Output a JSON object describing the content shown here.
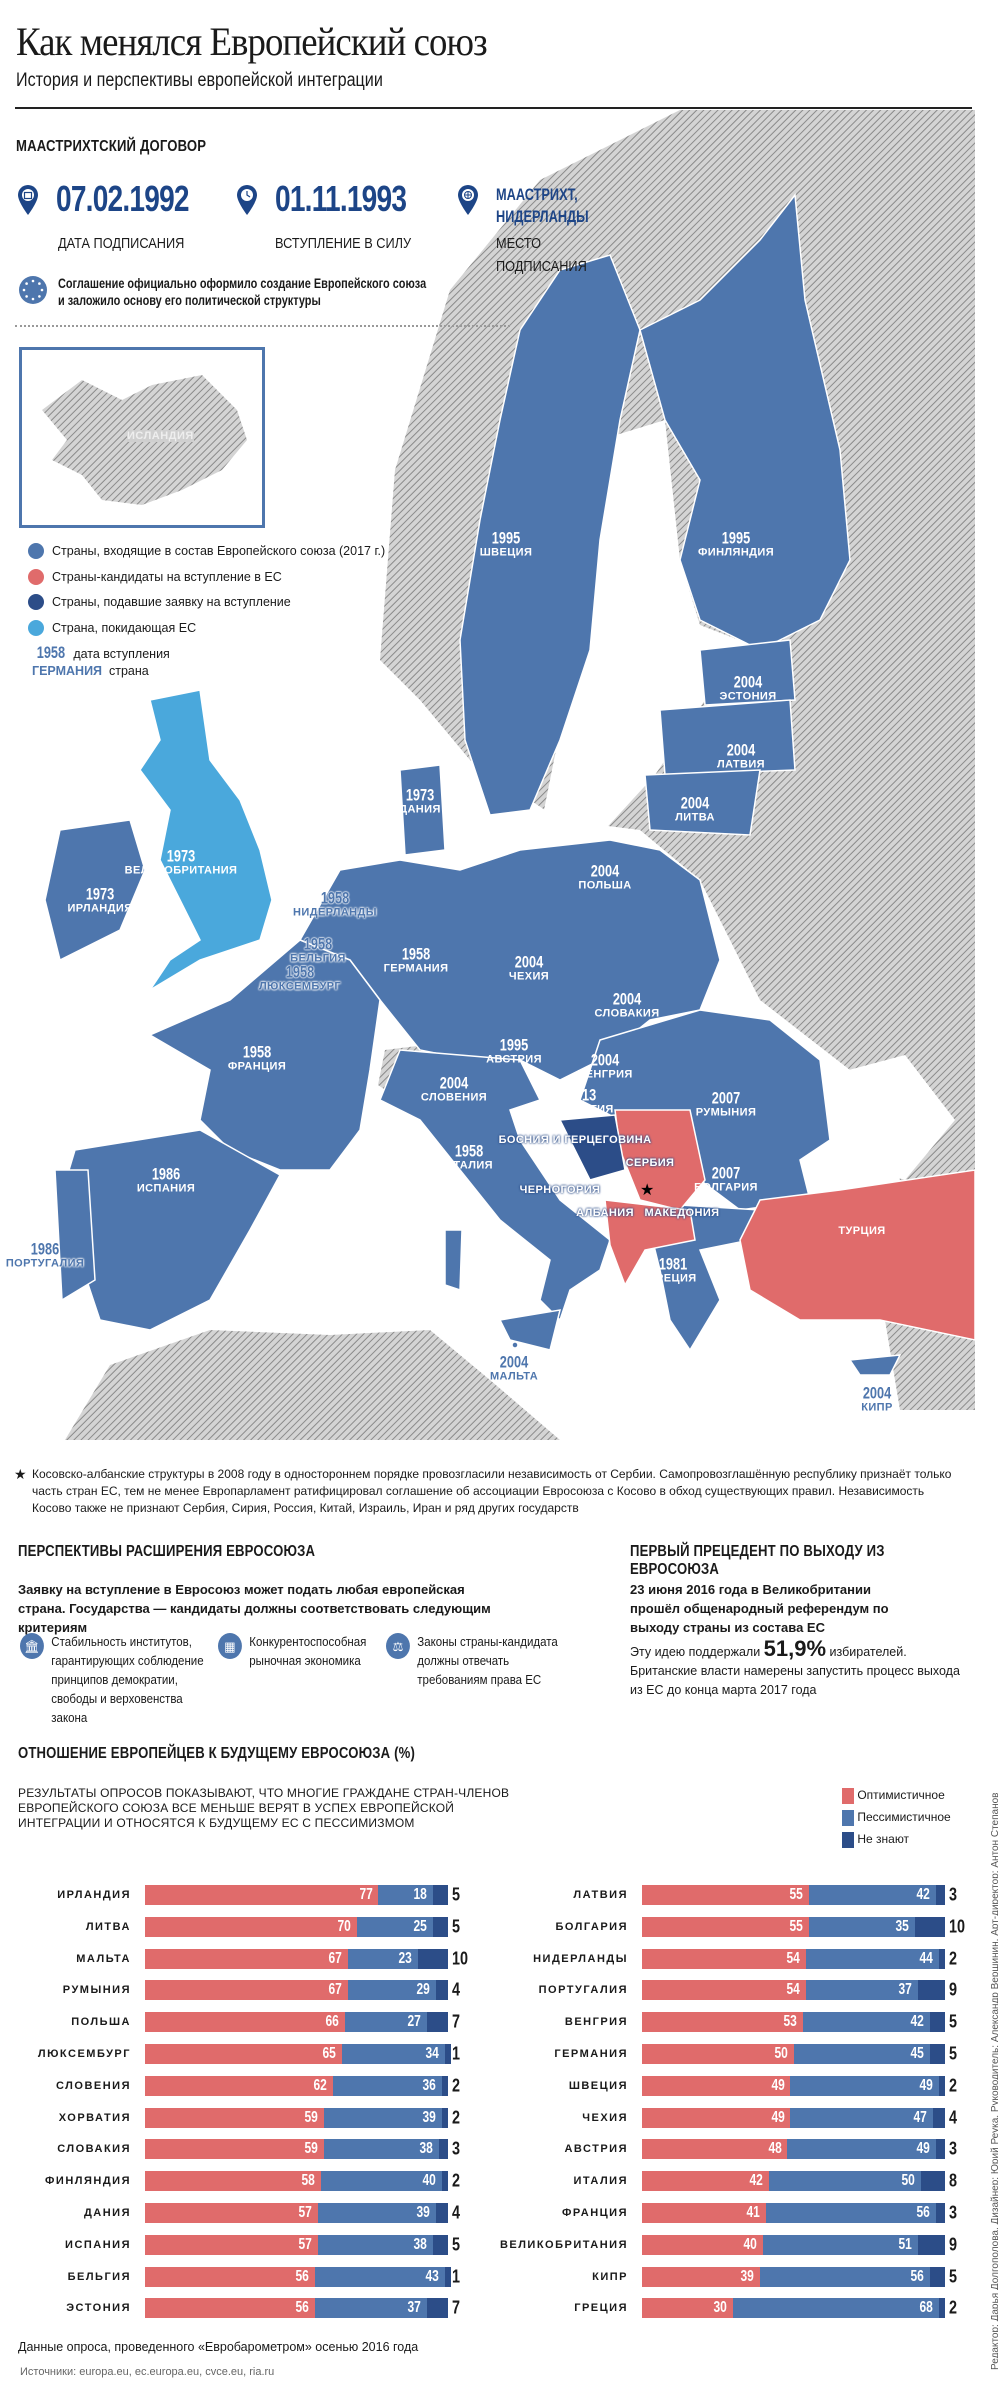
{
  "header": {
    "title": "Как менялся Европейский союз",
    "subtitle": "История и перспективы европейской интеграции"
  },
  "treaty": {
    "heading": "МААСТРИХТСКИЙ ДОГОВОР",
    "signed_date": "07.02.1992",
    "signed_label": "ДАТА ПОДПИСАНИЯ",
    "effective_date": "01.11.1993",
    "effective_label": "ВСТУПЛЕНИЕ В СИЛУ",
    "place_line1": "МААСТРИХТ,",
    "place_line2": "НИДЕРЛАНДЫ",
    "place_label1": "МЕСТО",
    "place_label2": "ПОДПИСАНИЯ",
    "note_line1": "Соглашение официально оформило создание Европейского союза",
    "note_line2": "и заложило основу его политической структуры"
  },
  "legend": {
    "iceland": "ИСЛАНДИЯ",
    "items": [
      {
        "label": "Страны, входящие в состав Европейского союза (2017 г.)",
        "color": "#4e76ad"
      },
      {
        "label": "Страны-кандидаты на вступление в ЕС",
        "color": "#e06b6b"
      },
      {
        "label": "Страны, подавшие заявку на вступление",
        "color": "#2c4d88"
      },
      {
        "label": "Страна, покидающая ЕС",
        "color": "#4aa8dc"
      }
    ],
    "year_sample": "1958",
    "year_desc": "дата вступления",
    "country_sample": "ГЕРМАНИЯ",
    "country_desc": "страна"
  },
  "map": {
    "labels": [
      {
        "year": "1995",
        "name": "ШВЕЦИЯ"
      },
      {
        "year": "1995",
        "name": "ФИНЛЯНДИЯ"
      },
      {
        "year": "2004",
        "name": "ЭСТОНИЯ"
      },
      {
        "year": "2004",
        "name": "ЛАТВИЯ"
      },
      {
        "year": "2004",
        "name": "ЛИТВА"
      },
      {
        "year": "1973",
        "name": "ДАНИЯ"
      },
      {
        "year": "1973",
        "name": "ВЕЛИКОБРИТАНИЯ"
      },
      {
        "year": "1973",
        "name": "ИРЛАНДИЯ"
      },
      {
        "year": "1958",
        "name": "НИДЕРЛАНДЫ"
      },
      {
        "year": "1958",
        "name": "БЕЛЬГИЯ"
      },
      {
        "year": "1958",
        "name": "ЛЮКСЕМБУРГ"
      },
      {
        "year": "1958",
        "name": "ГЕРМАНИЯ"
      },
      {
        "year": "2004",
        "name": "ПОЛЬША"
      },
      {
        "year": "2004",
        "name": "ЧЕХИЯ"
      },
      {
        "year": "2004",
        "name": "СЛОВАКИЯ"
      },
      {
        "year": "1995",
        "name": "АВСТРИЯ"
      },
      {
        "year": "2004",
        "name": "ВЕНГРИЯ"
      },
      {
        "year": "2004",
        "name": "СЛОВЕНИЯ"
      },
      {
        "year": "2013",
        "name": "ХОРВАТИЯ"
      },
      {
        "year": "",
        "name": "БОСНИЯ И ГЕРЦЕГОВИНА"
      },
      {
        "year": "",
        "name": "СЕРБИЯ"
      },
      {
        "year": "",
        "name": "ЧЕРНОГОРИЯ"
      },
      {
        "year": "",
        "name": "АЛБАНИЯ"
      },
      {
        "year": "",
        "name": "МАКЕДОНИЯ"
      },
      {
        "year": "2007",
        "name": "РУМЫНИЯ"
      },
      {
        "year": "2007",
        "name": "БОЛГАРИЯ"
      },
      {
        "year": "1981",
        "name": "ГРЕЦИЯ"
      },
      {
        "year": "",
        "name": "ТУРЦИЯ"
      },
      {
        "year": "1958",
        "name": "ФРАНЦИЯ"
      },
      {
        "year": "1958",
        "name": "ИТАЛИЯ"
      },
      {
        "year": "1986",
        "name": "ИСПАНИЯ"
      },
      {
        "year": "1986",
        "name": "ПОРТУГАЛИЯ"
      },
      {
        "year": "2004",
        "name": "МАЛЬТА"
      },
      {
        "year": "2004",
        "name": "КИПР"
      }
    ]
  },
  "footnote": "Косовско-албанские структуры в 2008 году в одностороннем порядке провозгласили независимость от Сербии. Самопровозглашённую республику признаёт только часть стран ЕС, тем не менее Европарламент ратифицировал соглашение об ассоциации Евросоюза с Косово в обход существующих правил. Независимость Косово также не признают Сербия, Сирия, Россия, Китай, Израиль, Иран и ряд других государств",
  "expansion": {
    "heading": "ПЕРСПЕКТИВЫ РАСШИРЕНИЯ ЕВРОСОЮЗА",
    "intro": "Заявку на вступление в Евросоюз может подать любая европейская страна. Государства — кандидаты должны соответствовать следующим критериям",
    "criteria": [
      {
        "icon": "institution-icon",
        "text": "Стабильность институтов, гарантирующих соблюдение принципов демократии, свободы и верховенства закона"
      },
      {
        "icon": "coins-icon",
        "text": "Конкурентоспособная рыночная экономика"
      },
      {
        "icon": "scales-icon",
        "text": "Законы страны-кандидата должны отвечать требованиям права ЕС"
      }
    ]
  },
  "brexit": {
    "heading": "ПЕРВЫЙ ПРЕЦЕДЕНТ ПО ВЫХОДУ ИЗ ЕВРОСОЮЗА",
    "lead": "23 июня 2016 года в Великобритании прошёл общенародный референдум по выходу страны из состава ЕС",
    "support_prefix": "Эту идею поддержали",
    "support_value": "51,9%",
    "support_suffix": "избирателей.",
    "plan": "Британские власти намерены запустить процесс выхода из ЕС до конца марта 2017 года"
  },
  "chart_data": {
    "type": "bar",
    "title": "ОТНОШЕНИЕ ЕВРОПЕЙЦЕВ К БУДУЩЕМУ ЕВРОСОЮЗА (%)",
    "description": "РЕЗУЛЬТАТЫ ОПРОСОВ ПОКАЗЫВАЮТ, ЧТО МНОГИЕ ГРАЖДАНЕ СТРАН-ЧЛЕНОВ ЕВРОПЕЙСКОГО СОЮЗА ВСЕ МЕНЬШЕ ВЕРЯТ В УСПЕХ ЕВРОПЕЙСКОЙ ИНТЕГРАЦИИ И ОТНОСЯТСЯ К БУДУЩЕМУ ЕС С ПЕССИМИЗМОМ",
    "stacked": true,
    "orientation": "horizontal",
    "xlim": [
      0,
      100
    ],
    "legend_position": "top-right",
    "series_meta": [
      {
        "name": "Оптимистичное",
        "color": "#e06b6b"
      },
      {
        "name": "Пессимистичное",
        "color": "#4e76ad"
      },
      {
        "name": "Не знают",
        "color": "#2c4d88"
      }
    ],
    "categories": [
      "ИРЛАНДИЯ",
      "ЛИТВА",
      "МАЛЬТА",
      "РУМЫНИЯ",
      "ПОЛЬША",
      "ЛЮКСЕМБУРГ",
      "СЛОВЕНИЯ",
      "ХОРВАТИЯ",
      "СЛОВАКИЯ",
      "ФИНЛЯНДИЯ",
      "ДАНИЯ",
      "ИСПАНИЯ",
      "БЕЛЬГИЯ",
      "ЭСТОНИЯ",
      "ЛАТВИЯ",
      "БОЛГАРИЯ",
      "НИДЕРЛАНДЫ",
      "ПОРТУГАЛИЯ",
      "ВЕНГРИЯ",
      "ГЕРМАНИЯ",
      "ШВЕЦИЯ",
      "ЧЕХИЯ",
      "АВСТРИЯ",
      "ИТАЛИЯ",
      "ФРАНЦИЯ",
      "ВЕЛИКОБРИТАНИЯ",
      "КИПР",
      "ГРЕЦИЯ"
    ],
    "series": [
      {
        "name": "Оптимистичное",
        "values": [
          77,
          70,
          67,
          67,
          66,
          65,
          62,
          59,
          59,
          58,
          57,
          57,
          56,
          56,
          55,
          55,
          54,
          54,
          53,
          50,
          49,
          49,
          48,
          42,
          41,
          40,
          39,
          30
        ]
      },
      {
        "name": "Пессимистичное",
        "values": [
          18,
          25,
          23,
          29,
          27,
          34,
          36,
          39,
          38,
          40,
          39,
          38,
          43,
          37,
          42,
          35,
          44,
          37,
          42,
          45,
          49,
          47,
          49,
          50,
          56,
          51,
          56,
          68
        ]
      },
      {
        "name": "Не знают",
        "values": [
          5,
          5,
          10,
          4,
          7,
          1,
          2,
          2,
          3,
          2,
          4,
          5,
          1,
          7,
          3,
          10,
          2,
          9,
          5,
          5,
          2,
          4,
          3,
          8,
          3,
          9,
          5,
          2
        ]
      }
    ],
    "source_note": "Данные опроса, проведенного «Евробарометром» осенью 2016 года"
  },
  "sources": "Источники: europa.eu, ec.europa.eu, cvce.eu, ria.ru",
  "credits": "Редактор: Дарья Долгополова. Дизайнер: Юрий Реука. Руководитель: Александр Вершинин. Арт-директор: Антон Степанов"
}
